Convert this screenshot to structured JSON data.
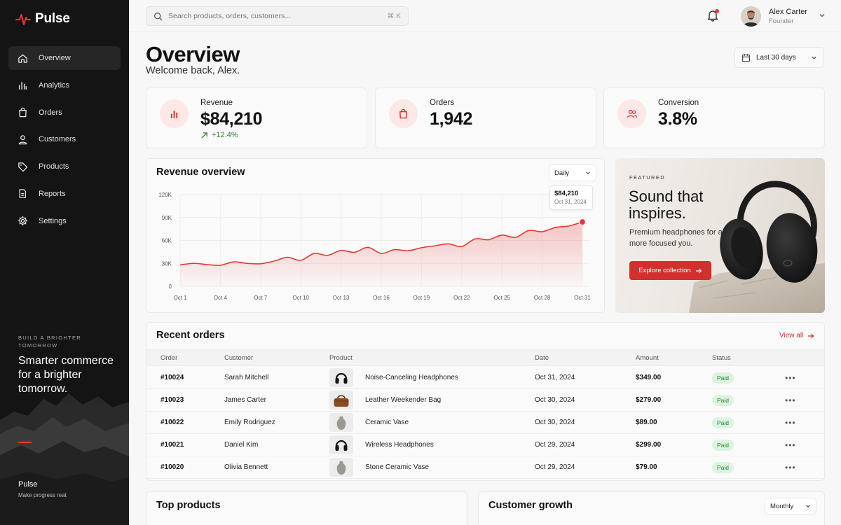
{
  "app": {
    "name": "Pulse"
  },
  "sidebar": {
    "items": [
      {
        "label": "Overview",
        "icon": "home-icon",
        "active": true
      },
      {
        "label": "Analytics",
        "icon": "bar-chart-icon"
      },
      {
        "label": "Orders",
        "icon": "shopping-bag-icon"
      },
      {
        "label": "Customers",
        "icon": "user-icon"
      },
      {
        "label": "Products",
        "icon": "tag-icon"
      },
      {
        "label": "Reports",
        "icon": "document-icon"
      },
      {
        "label": "Settings",
        "icon": "gear-icon"
      }
    ],
    "promo": {
      "kicker": "BUILD A BRIGHTER TOMORROW",
      "title": "Smarter commerce for a brighter tomorrow."
    },
    "footer": {
      "name": "Pulse",
      "tagline": "Make progress real."
    }
  },
  "topbar": {
    "search_placeholder": "Search products, orders, customers...",
    "search_shortcut": "⌘ K",
    "user": {
      "name": "Alex Carter",
      "role": "Founder"
    }
  },
  "header": {
    "title": "Overview",
    "subtitle": "Welcome back, Alex.",
    "date_range": "Last 30 days"
  },
  "kpis": [
    {
      "label": "Revenue",
      "value": "$84,210",
      "delta": "+12.4%",
      "icon": "bar-chart-icon"
    },
    {
      "label": "Orders",
      "value": "1,942",
      "icon": "shopping-bag-icon"
    },
    {
      "label": "Conversion",
      "value": "3.8%",
      "icon": "users-icon"
    }
  ],
  "revenue_chart": {
    "title": "Revenue overview",
    "period": "Daily",
    "tooltip": {
      "value": "$84,210",
      "date": "Oct 31, 2024"
    }
  },
  "chart_data": {
    "type": "area",
    "title": "Revenue overview",
    "xlabel": "",
    "ylabel": "",
    "ylim": [
      0,
      120000
    ],
    "yticks": [
      "0",
      "30K",
      "60K",
      "90K",
      "120K"
    ],
    "ytick_values": [
      0,
      30000,
      60000,
      90000,
      120000
    ],
    "xticks": [
      "Oct 1",
      "Oct 4",
      "Oct 7",
      "Oct 10",
      "Oct 13",
      "Oct 16",
      "Oct 19",
      "Oct 22",
      "Oct 25",
      "Oct 28",
      "Oct 31"
    ],
    "grid": true,
    "color": "#e53935",
    "series": [
      {
        "x": [
          "Oct 1",
          "Oct 2",
          "Oct 3",
          "Oct 4",
          "Oct 5",
          "Oct 6",
          "Oct 7",
          "Oct 8",
          "Oct 9",
          "Oct 10",
          "Oct 11",
          "Oct 12",
          "Oct 13",
          "Oct 14",
          "Oct 15",
          "Oct 16",
          "Oct 17",
          "Oct 18",
          "Oct 19",
          "Oct 20",
          "Oct 21",
          "Oct 22",
          "Oct 23",
          "Oct 24",
          "Oct 25",
          "Oct 26",
          "Oct 27",
          "Oct 28",
          "Oct 29",
          "Oct 30",
          "Oct 31"
        ],
        "values": [
          28000,
          30000,
          28500,
          27500,
          32000,
          30000,
          29500,
          33000,
          38000,
          34000,
          43000,
          40500,
          47000,
          44500,
          51000,
          43000,
          48000,
          46500,
          50500,
          53000,
          55500,
          52000,
          62000,
          61000,
          67000,
          64000,
          73000,
          71500,
          77000,
          79000,
          84210
        ]
      }
    ]
  },
  "featured": {
    "kicker": "FEATURED",
    "title": "Sound that inspires.",
    "desc": "Premium headphones for a more focused you.",
    "button": "Explore collection"
  },
  "orders": {
    "title": "Recent orders",
    "view_all": "View all",
    "columns": [
      "Order",
      "Customer",
      "Product",
      "Date",
      "Amount",
      "Status"
    ],
    "rows": [
      {
        "id": "#10024",
        "customer": "Sarah Mitchell",
        "product": "Noise-Canceling Headphones",
        "thumb": "headphones",
        "date": "Oct 31, 2024",
        "amount": "$349.00",
        "status": "Paid"
      },
      {
        "id": "#10023",
        "customer": "James Carter",
        "product": "Leather Weekender Bag",
        "thumb": "bag",
        "date": "Oct 30, 2024",
        "amount": "$279.00",
        "status": "Paid"
      },
      {
        "id": "#10022",
        "customer": "Emily Rodriguez",
        "product": "Ceramic Vase",
        "thumb": "vase",
        "date": "Oct 30, 2024",
        "amount": "$89.00",
        "status": "Paid"
      },
      {
        "id": "#10021",
        "customer": "Daniel Kim",
        "product": "Wireless Headphones",
        "thumb": "headphones",
        "date": "Oct 29, 2024",
        "amount": "$299.00",
        "status": "Paid"
      },
      {
        "id": "#10020",
        "customer": "Olivia Bennett",
        "product": "Stone Ceramic Vase",
        "thumb": "vase",
        "date": "Oct 29, 2024",
        "amount": "$79.00",
        "status": "Paid"
      }
    ]
  },
  "bottom": {
    "top_products": {
      "title": "Top products"
    },
    "customer_growth": {
      "title": "Customer growth",
      "period": "Monthly"
    }
  }
}
